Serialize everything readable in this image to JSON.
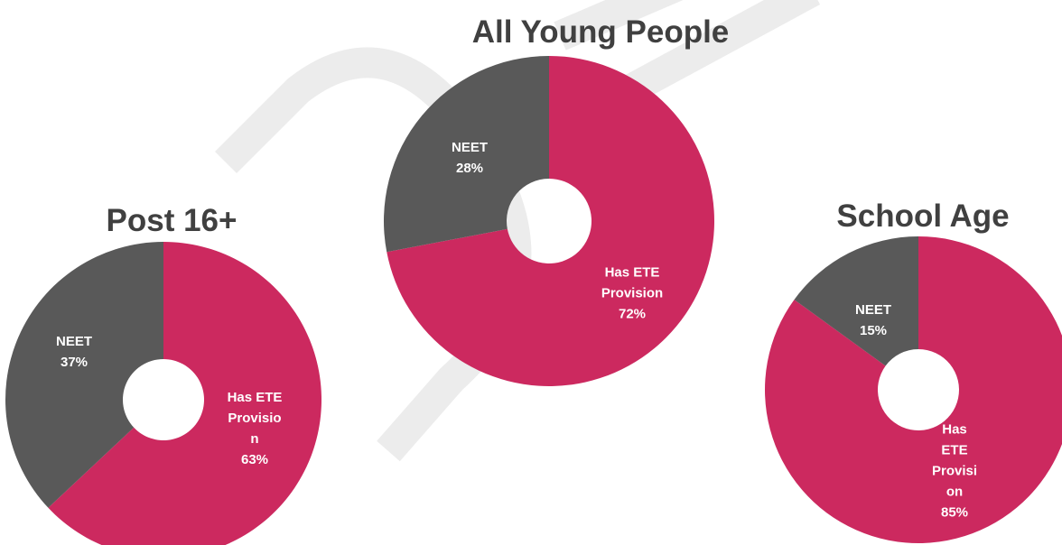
{
  "chart_data": [
    {
      "type": "pie",
      "title": "Post 16+",
      "categories": [
        "Has ETE Provision",
        "NEET"
      ],
      "values": [
        63,
        37
      ],
      "value_labels": [
        "63%",
        "37%"
      ],
      "colors": [
        "#cc295f",
        "#595959"
      ],
      "donut": true
    },
    {
      "type": "pie",
      "title": "All Young People",
      "categories": [
        "Has ETE Provision",
        "NEET"
      ],
      "values": [
        72,
        28
      ],
      "value_labels": [
        "72%",
        "28%"
      ],
      "colors": [
        "#cc295f",
        "#595959"
      ],
      "donut": true
    },
    {
      "type": "pie",
      "title": "School Age",
      "categories": [
        "Has ETE Provision",
        "NEET"
      ],
      "values": [
        85,
        15
      ],
      "value_labels": [
        "85%",
        "15%"
      ],
      "colors": [
        "#cc295f",
        "#595959"
      ],
      "donut": true
    }
  ]
}
